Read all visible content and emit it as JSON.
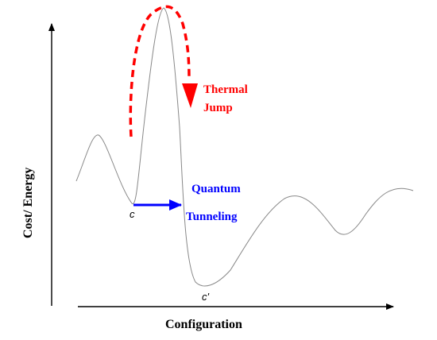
{
  "axes": {
    "y_label": "Cost/ Energy",
    "x_label": "Configuration"
  },
  "labels": {
    "thermal_line1": "Thermal",
    "thermal_line2": "Jump",
    "quantum_line1": "Quantum",
    "quantum_line2": "Tunneling",
    "point_c": "c",
    "point_c_prime": "c'"
  },
  "colors": {
    "thermal": "#ff0000",
    "quantum": "#0000ff",
    "curve": "#888888",
    "axis": "#000000"
  }
}
